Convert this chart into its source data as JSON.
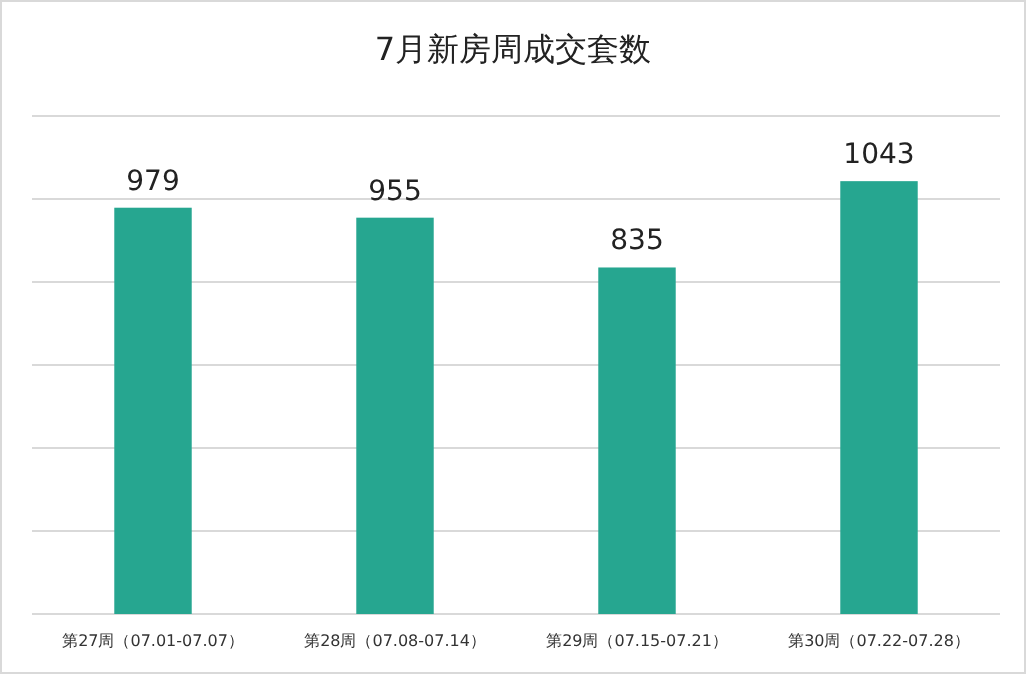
{
  "chart_data": {
    "type": "bar",
    "title": "7月新房周成交套数",
    "categories": [
      "第27周（07.01-07.07）",
      "第28周（07.08-07.14）",
      "第29周（07.15-07.21）",
      "第30周（07.22-07.28）"
    ],
    "values": [
      979,
      955,
      835,
      1043
    ],
    "color": "#26a690",
    "ylim": [
      0,
      1200
    ],
    "yticks": [
      {
        "value": 0,
        "label": null
      },
      {
        "value": 200,
        "label": null
      },
      {
        "value": 400,
        "label": null
      },
      {
        "value": 600,
        "label": null
      },
      {
        "value": 800,
        "label": null
      },
      {
        "value": 1000,
        "label": null
      },
      {
        "value": 1200,
        "label": null
      }
    ],
    "grid": "y",
    "tick_labels": "x",
    "data_labels": true
  }
}
